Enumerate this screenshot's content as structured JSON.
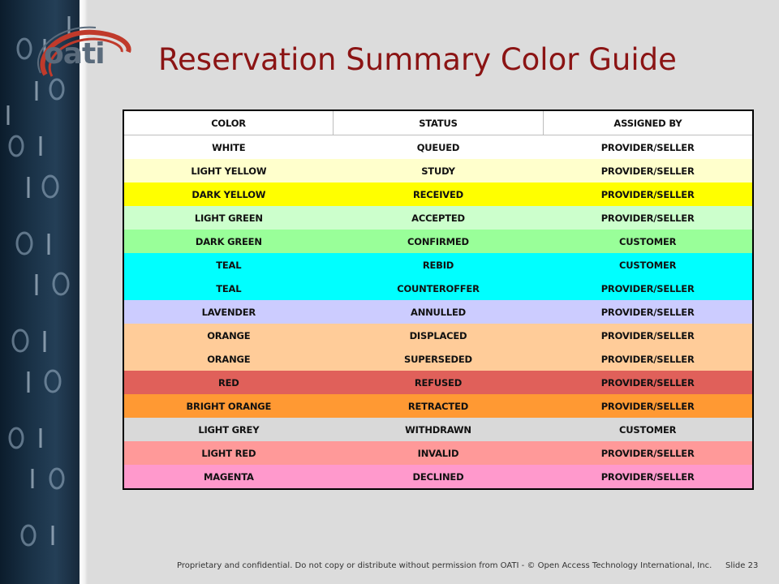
{
  "logo": {
    "text": "oati"
  },
  "title": "Reservation Summary Color Guide",
  "table": {
    "headers": [
      "COLOR",
      "STATUS",
      "ASSIGNED BY"
    ],
    "rows": [
      {
        "color": "WHITE",
        "status": "QUEUED",
        "assigned_by": "PROVIDER/SELLER",
        "bg": "#ffffff"
      },
      {
        "color": "LIGHT YELLOW",
        "status": "STUDY",
        "assigned_by": "PROVIDER/SELLER",
        "bg": "#ffffcc"
      },
      {
        "color": "DARK YELLOW",
        "status": "RECEIVED",
        "assigned_by": "PROVIDER/SELLER",
        "bg": "#ffff00"
      },
      {
        "color": "LIGHT GREEN",
        "status": "ACCEPTED",
        "assigned_by": "PROVIDER/SELLER",
        "bg": "#ccffcc"
      },
      {
        "color": "DARK GREEN",
        "status": "CONFIRMED",
        "assigned_by": "CUSTOMER",
        "bg": "#99ff99"
      },
      {
        "color": "TEAL",
        "status": "REBID",
        "assigned_by": "CUSTOMER",
        "bg": "#00ffff"
      },
      {
        "color": "TEAL",
        "status": "COUNTEROFFER",
        "assigned_by": "PROVIDER/SELLER",
        "bg": "#00ffff"
      },
      {
        "color": "LAVENDER",
        "status": "ANNULLED",
        "assigned_by": "PROVIDER/SELLER",
        "bg": "#ccccff"
      },
      {
        "color": "ORANGE",
        "status": "DISPLACED",
        "assigned_by": "PROVIDER/SELLER",
        "bg": "#ffcc99"
      },
      {
        "color": "ORANGE",
        "status": "SUPERSEDED",
        "assigned_by": "PROVIDER/SELLER",
        "bg": "#ffcc99"
      },
      {
        "color": "RED",
        "status": "REFUSED",
        "assigned_by": "PROVIDER/SELLER",
        "bg": "#e0605a"
      },
      {
        "color": "BRIGHT ORANGE",
        "status": "RETRACTED",
        "assigned_by": "PROVIDER/SELLER",
        "bg": "#ff9933"
      },
      {
        "color": "LIGHT GREY",
        "status": "WITHDRAWN",
        "assigned_by": "CUSTOMER",
        "bg": "#d9d9d9"
      },
      {
        "color": "LIGHT RED",
        "status": "INVALID",
        "assigned_by": "PROVIDER/SELLER",
        "bg": "#ff9999"
      },
      {
        "color": "MAGENTA",
        "status": "DECLINED",
        "assigned_by": "PROVIDER/SELLER",
        "bg": "#ff99cc"
      }
    ]
  },
  "footer": {
    "text": "Proprietary and confidential. Do not copy or distribute without permission from OATI - © Open Access Technology International, Inc.",
    "slide": "Slide 23"
  },
  "colors": {
    "title": "#8b1414",
    "logo_arc": "#c03a2b",
    "logo_text": "#5a6b7c"
  }
}
